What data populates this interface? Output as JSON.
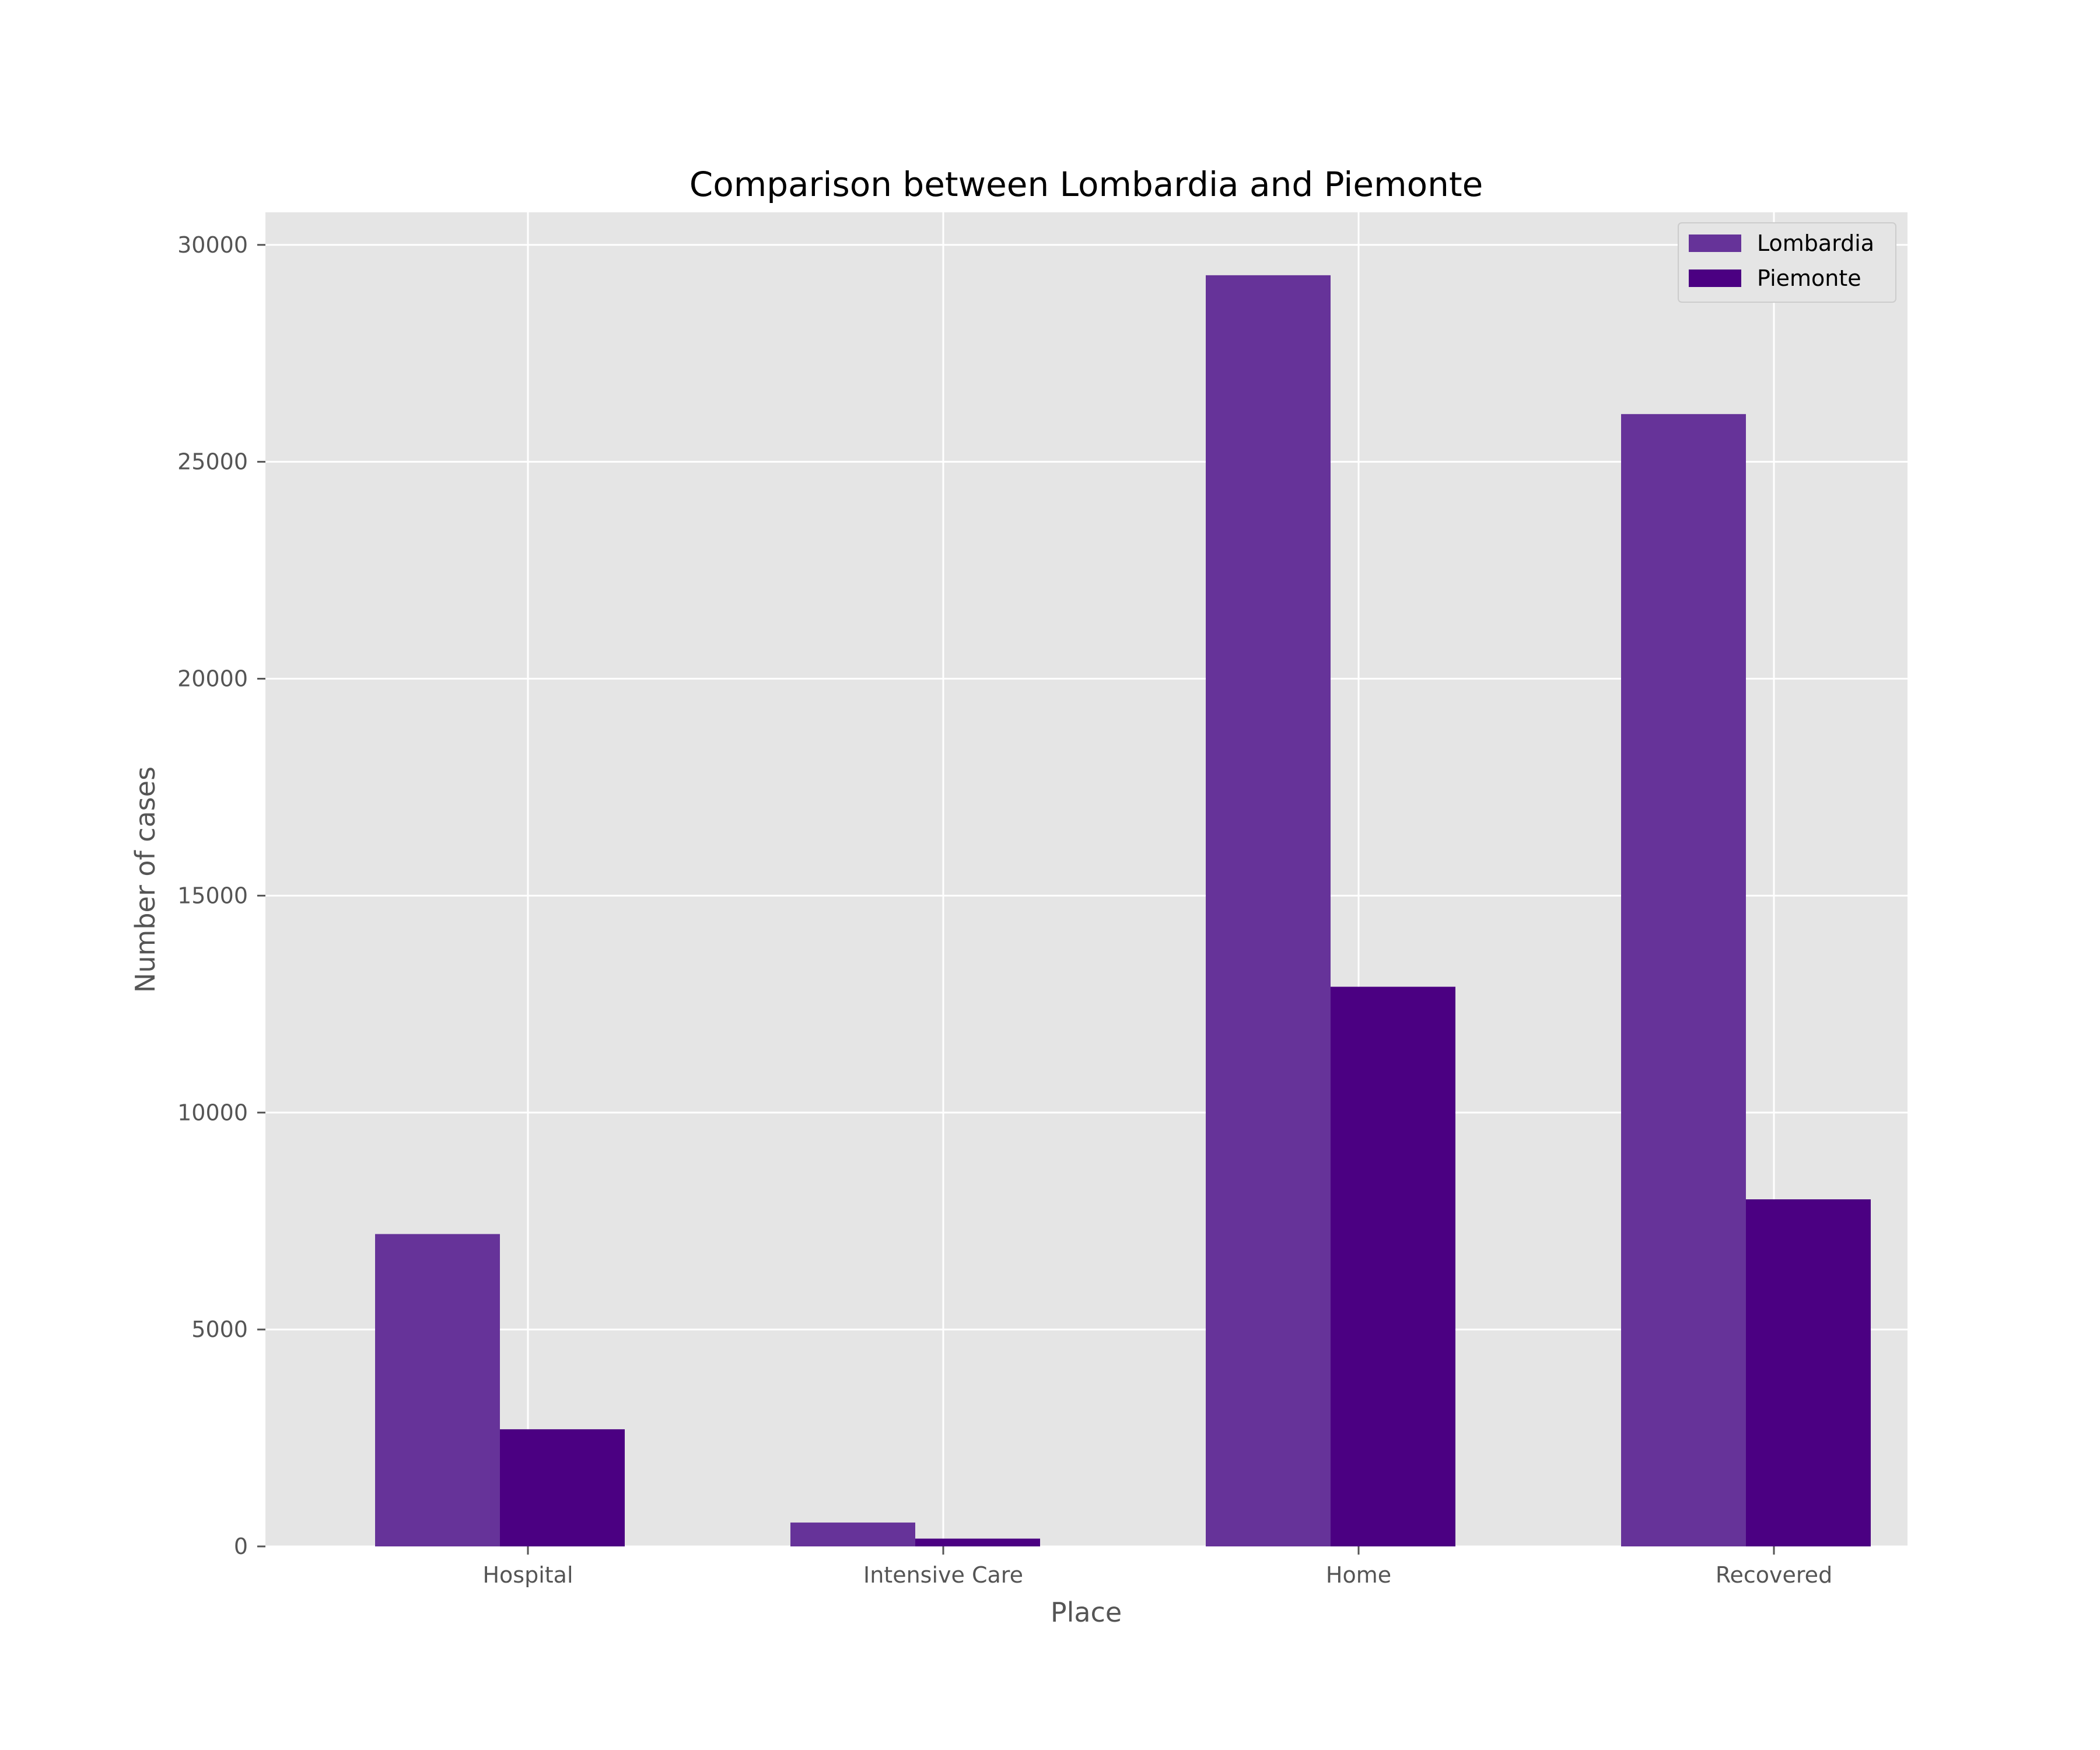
{
  "chart_data": {
    "type": "bar",
    "title": "Comparison between Lombardia and Piemonte",
    "xlabel": "Place",
    "ylabel": "Number of cases",
    "categories": [
      "Hospital",
      "Intensive Care",
      "Home",
      "Recovered"
    ],
    "series": [
      {
        "name": "Lombardia",
        "values": [
          7200,
          550,
          29300,
          26100
        ],
        "color": "#663399"
      },
      {
        "name": "Piemonte",
        "values": [
          2700,
          180,
          12900,
          8000
        ],
        "color": "#4b0082"
      }
    ],
    "ylim": [
      0,
      30750
    ],
    "yticks": [
      0,
      5000,
      10000,
      15000,
      20000,
      25000,
      30000
    ],
    "grid": true,
    "legend": "top-right",
    "background": "#e5e5e5",
    "gridColor": "#ffffff"
  }
}
